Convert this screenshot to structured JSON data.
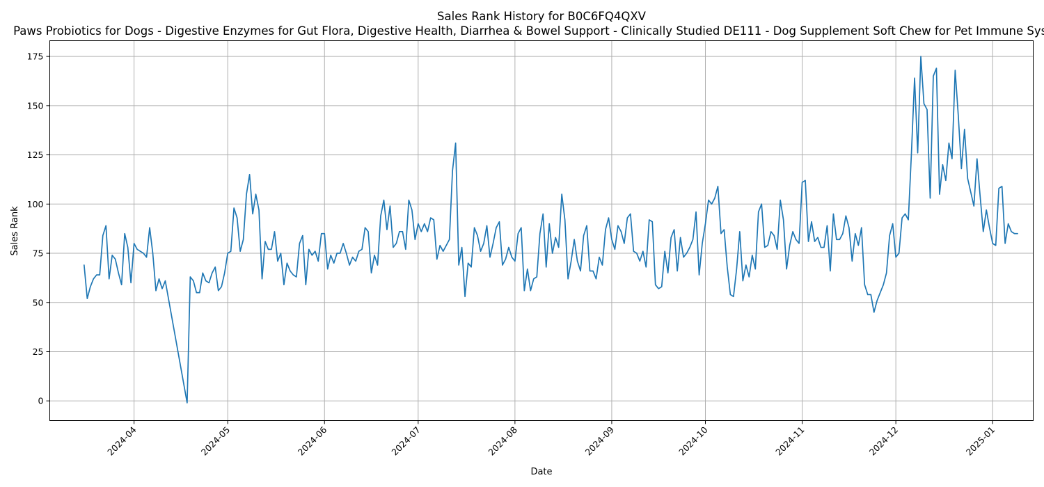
{
  "chart_data": {
    "type": "line",
    "title": "Sales Rank History for B0C6FQ4QXV",
    "subtitle": "Paws Probiotics for Dogs - Digestive Enzymes for Gut Flora, Digestive Health, Diarrhea & Bowel Support - Clinically Studied DE111 - Dog Supplement Soft Chew for Pet Immune System",
    "xlabel": "Date",
    "ylabel": "Sales Rank",
    "xlim": [
      "2024-03-05",
      "2025-01-14"
    ],
    "ylim": [
      -10,
      183
    ],
    "x_ticks": [
      "2024-04",
      "2024-05",
      "2024-06",
      "2024-07",
      "2024-08",
      "2024-09",
      "2024-10",
      "2024-11",
      "2024-12",
      "2025-01"
    ],
    "x_tick_dates": [
      "2024-04-01",
      "2024-05-01",
      "2024-06-01",
      "2024-07-01",
      "2024-08-01",
      "2024-09-01",
      "2024-10-01",
      "2024-11-01",
      "2024-12-01",
      "2025-01-01"
    ],
    "y_ticks": [
      0,
      25,
      50,
      75,
      100,
      125,
      150,
      175
    ],
    "grid": true,
    "line_color": "#1f77b4",
    "series": [
      {
        "name": "Sales Rank",
        "x": [
          "2024-03-16",
          "2024-03-17",
          "2024-03-18",
          "2024-03-19",
          "2024-03-20",
          "2024-03-21",
          "2024-03-22",
          "2024-03-23",
          "2024-03-24",
          "2024-03-25",
          "2024-03-26",
          "2024-03-27",
          "2024-03-28",
          "2024-03-29",
          "2024-03-30",
          "2024-03-31",
          "2024-04-01",
          "2024-04-02",
          "2024-04-03",
          "2024-04-04",
          "2024-04-05",
          "2024-04-06",
          "2024-04-07",
          "2024-04-08",
          "2024-04-09",
          "2024-04-10",
          "2024-04-11",
          "2024-04-18",
          "2024-04-19",
          "2024-04-20",
          "2024-04-21",
          "2024-04-22",
          "2024-04-23",
          "2024-04-24",
          "2024-04-25",
          "2024-04-26",
          "2024-04-27",
          "2024-04-28",
          "2024-04-29",
          "2024-04-30",
          "2024-05-01",
          "2024-05-02",
          "2024-05-03",
          "2024-05-04",
          "2024-05-05",
          "2024-05-06",
          "2024-05-07",
          "2024-05-08",
          "2024-05-09",
          "2024-05-10",
          "2024-05-11",
          "2024-05-12",
          "2024-05-13",
          "2024-05-14",
          "2024-05-15",
          "2024-05-16",
          "2024-05-17",
          "2024-05-18",
          "2024-05-19",
          "2024-05-20",
          "2024-05-21",
          "2024-05-22",
          "2024-05-23",
          "2024-05-24",
          "2024-05-25",
          "2024-05-26",
          "2024-05-27",
          "2024-05-28",
          "2024-05-29",
          "2024-05-30",
          "2024-05-31",
          "2024-06-01",
          "2024-06-02",
          "2024-06-03",
          "2024-06-04",
          "2024-06-05",
          "2024-06-06",
          "2024-06-07",
          "2024-06-08",
          "2024-06-09",
          "2024-06-10",
          "2024-06-11",
          "2024-06-12",
          "2024-06-13",
          "2024-06-14",
          "2024-06-15",
          "2024-06-16",
          "2024-06-17",
          "2024-06-18",
          "2024-06-19",
          "2024-06-20",
          "2024-06-21",
          "2024-06-22",
          "2024-06-23",
          "2024-06-24",
          "2024-06-25",
          "2024-06-26",
          "2024-06-27",
          "2024-06-28",
          "2024-06-29",
          "2024-06-30",
          "2024-07-01",
          "2024-07-02",
          "2024-07-03",
          "2024-07-04",
          "2024-07-05",
          "2024-07-06",
          "2024-07-07",
          "2024-07-08",
          "2024-07-09",
          "2024-07-10",
          "2024-07-11",
          "2024-07-12",
          "2024-07-13",
          "2024-07-14",
          "2024-07-15",
          "2024-07-16",
          "2024-07-17",
          "2024-07-18",
          "2024-07-19",
          "2024-07-20",
          "2024-07-21",
          "2024-07-22",
          "2024-07-23",
          "2024-07-24",
          "2024-07-25",
          "2024-07-26",
          "2024-07-27",
          "2024-07-28",
          "2024-07-29",
          "2024-07-30",
          "2024-07-31",
          "2024-08-01",
          "2024-08-02",
          "2024-08-03",
          "2024-08-04",
          "2024-08-05",
          "2024-08-06",
          "2024-08-07",
          "2024-08-08",
          "2024-08-09",
          "2024-08-10",
          "2024-08-11",
          "2024-08-12",
          "2024-08-13",
          "2024-08-14",
          "2024-08-15",
          "2024-08-16",
          "2024-08-17",
          "2024-08-18",
          "2024-08-19",
          "2024-08-20",
          "2024-08-21",
          "2024-08-22",
          "2024-08-23",
          "2024-08-24",
          "2024-08-25",
          "2024-08-26",
          "2024-08-27",
          "2024-08-28",
          "2024-08-29",
          "2024-08-30",
          "2024-08-31",
          "2024-09-01",
          "2024-09-02",
          "2024-09-03",
          "2024-09-04",
          "2024-09-05",
          "2024-09-06",
          "2024-09-07",
          "2024-09-08",
          "2024-09-09",
          "2024-09-10",
          "2024-09-11",
          "2024-09-12",
          "2024-09-13",
          "2024-09-14",
          "2024-09-15",
          "2024-09-16",
          "2024-09-17",
          "2024-09-18",
          "2024-09-19",
          "2024-09-20",
          "2024-09-21",
          "2024-09-22",
          "2024-09-23",
          "2024-09-24",
          "2024-09-25",
          "2024-09-26",
          "2024-09-27",
          "2024-09-28",
          "2024-09-29",
          "2024-09-30",
          "2024-10-01",
          "2024-10-02",
          "2024-10-03",
          "2024-10-04",
          "2024-10-05",
          "2024-10-06",
          "2024-10-07",
          "2024-10-08",
          "2024-10-09",
          "2024-10-10",
          "2024-10-11",
          "2024-10-12",
          "2024-10-13",
          "2024-10-14",
          "2024-10-15",
          "2024-10-16",
          "2024-10-17",
          "2024-10-18",
          "2024-10-19",
          "2024-10-20",
          "2024-10-21",
          "2024-10-22",
          "2024-10-23",
          "2024-10-24",
          "2024-10-25",
          "2024-10-26",
          "2024-10-27",
          "2024-10-28",
          "2024-10-29",
          "2024-10-30",
          "2024-10-31",
          "2024-11-01",
          "2024-11-02",
          "2024-11-03",
          "2024-11-04",
          "2024-11-05",
          "2024-11-06",
          "2024-11-07",
          "2024-11-08",
          "2024-11-09",
          "2024-11-10",
          "2024-11-11",
          "2024-11-12",
          "2024-11-13",
          "2024-11-14",
          "2024-11-15",
          "2024-11-16",
          "2024-11-17",
          "2024-11-18",
          "2024-11-19",
          "2024-11-20",
          "2024-11-21",
          "2024-11-22",
          "2024-11-23",
          "2024-11-24",
          "2024-11-25",
          "2024-11-26",
          "2024-11-27",
          "2024-11-28",
          "2024-11-29",
          "2024-11-30",
          "2024-12-01",
          "2024-12-02",
          "2024-12-03",
          "2024-12-04",
          "2024-12-05",
          "2024-12-06",
          "2024-12-07",
          "2024-12-08",
          "2024-12-09",
          "2024-12-10",
          "2024-12-11",
          "2024-12-12",
          "2024-12-13",
          "2024-12-14",
          "2024-12-15",
          "2024-12-16",
          "2024-12-17",
          "2024-12-18",
          "2024-12-19",
          "2024-12-20",
          "2024-12-21",
          "2024-12-22",
          "2024-12-23",
          "2024-12-24",
          "2024-12-25",
          "2024-12-26",
          "2024-12-27",
          "2024-12-28",
          "2024-12-29",
          "2024-12-30",
          "2024-12-31",
          "2025-01-01",
          "2025-01-02",
          "2025-01-03",
          "2025-01-04",
          "2025-01-05",
          "2025-01-06",
          "2025-01-07",
          "2025-01-08",
          "2025-01-09"
        ],
        "values": [
          69,
          52,
          58,
          62,
          64,
          64,
          84,
          89,
          62,
          74,
          72,
          65,
          59,
          85,
          78,
          60,
          80,
          77,
          76,
          75,
          73,
          88,
          75,
          56,
          62,
          57,
          61,
          -1,
          63,
          61,
          55,
          55,
          65,
          61,
          60,
          65,
          68,
          56,
          58,
          65,
          75,
          76,
          98,
          93,
          76,
          82,
          105,
          115,
          95,
          105,
          97,
          62,
          81,
          77,
          77,
          86,
          71,
          75,
          59,
          70,
          66,
          64,
          63,
          80,
          84,
          59,
          77,
          74,
          76,
          71,
          85,
          85,
          67,
          74,
          70,
          75,
          75,
          80,
          75,
          69,
          73,
          71,
          76,
          77,
          88,
          86,
          65,
          74,
          69,
          94,
          102,
          87,
          99,
          78,
          80,
          86,
          86,
          77,
          102,
          97,
          82,
          90,
          86,
          90,
          86,
          93,
          92,
          72,
          79,
          76,
          79,
          82,
          117,
          131,
          69,
          78,
          53,
          70,
          68,
          88,
          84,
          76,
          80,
          89,
          73,
          80,
          88,
          91,
          69,
          72,
          78,
          73,
          71,
          85,
          88,
          56,
          67,
          56,
          62,
          63,
          85,
          95,
          68,
          90,
          75,
          83,
          78,
          105,
          92,
          62,
          71,
          82,
          71,
          66,
          84,
          89,
          66,
          66,
          62,
          73,
          69,
          87,
          93,
          82,
          77,
          89,
          86,
          80,
          93,
          95,
          76,
          75,
          71,
          76,
          68,
          92,
          91,
          59,
          57,
          58,
          76,
          65,
          83,
          87,
          66,
          83,
          73,
          75,
          78,
          82,
          96,
          64,
          80,
          90,
          102,
          100,
          103,
          109,
          85,
          87,
          68,
          54,
          53,
          67,
          86,
          61,
          69,
          63,
          74,
          67,
          96,
          100,
          78,
          79,
          86,
          84,
          77,
          102,
          92,
          67,
          79,
          86,
          82,
          80,
          111,
          112,
          81,
          91,
          81,
          83,
          78,
          78,
          89,
          66,
          95,
          82,
          82,
          85,
          94,
          88,
          71,
          85,
          79,
          88,
          59,
          54,
          54,
          45,
          51,
          55,
          59,
          65,
          84,
          90,
          73,
          75,
          93,
          95,
          92,
          126,
          164,
          126,
          175,
          151,
          148,
          103,
          165,
          169,
          105,
          120,
          112,
          131,
          123,
          168,
          145,
          118,
          138,
          113,
          106,
          99,
          123,
          104,
          86,
          97,
          88,
          80,
          79,
          108,
          109,
          80,
          90,
          86,
          85,
          85
        ]
      }
    ]
  }
}
